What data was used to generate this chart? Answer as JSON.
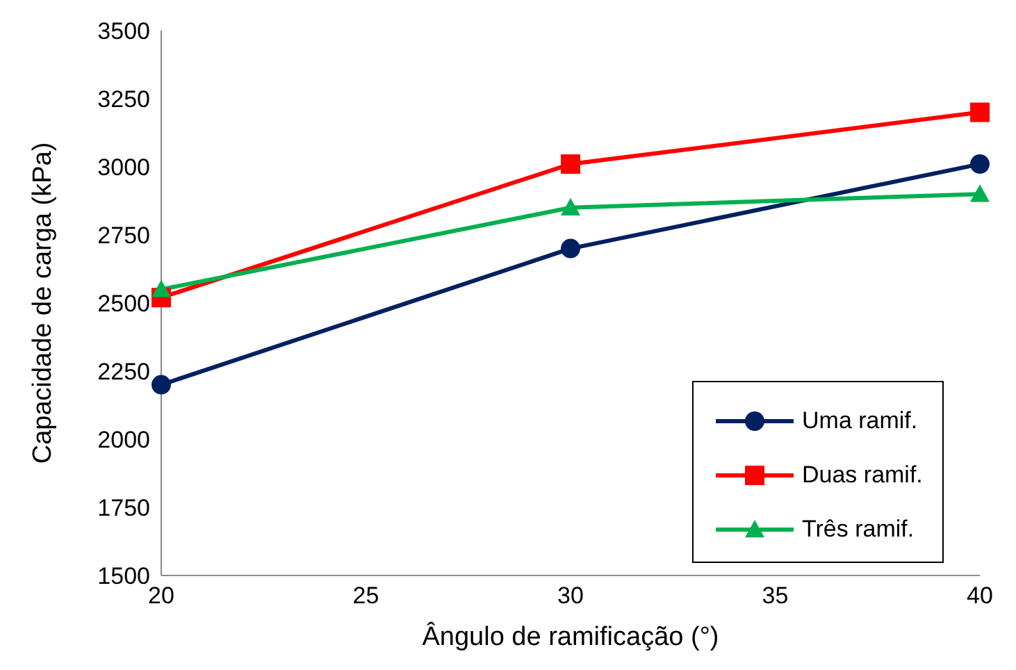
{
  "chart_data": {
    "type": "line",
    "xlabel": "Ângulo de ramificação (°)",
    "ylabel": "Capacidade de carga (kPa)",
    "x": [
      20,
      30,
      40
    ],
    "series": [
      {
        "name": "Uma ramif.",
        "color": "#002060",
        "marker": "circle",
        "values": [
          2200,
          2700,
          3010
        ]
      },
      {
        "name": "Duas ramif.",
        "color": "#ff0000",
        "marker": "square",
        "values": [
          2520,
          3010,
          3200
        ]
      },
      {
        "name": "Três ramif.",
        "color": "#00b050",
        "marker": "triangle",
        "values": [
          2550,
          2850,
          2900
        ]
      }
    ],
    "xlim": [
      20,
      40
    ],
    "xticks": [
      20,
      25,
      30,
      35,
      40
    ],
    "ylim": [
      1500,
      3500
    ],
    "yticks": [
      1500,
      1750,
      2000,
      2250,
      2500,
      2750,
      3000,
      3250,
      3500
    ],
    "grid": false,
    "legend": "bottom right",
    "line_style": "solid"
  }
}
